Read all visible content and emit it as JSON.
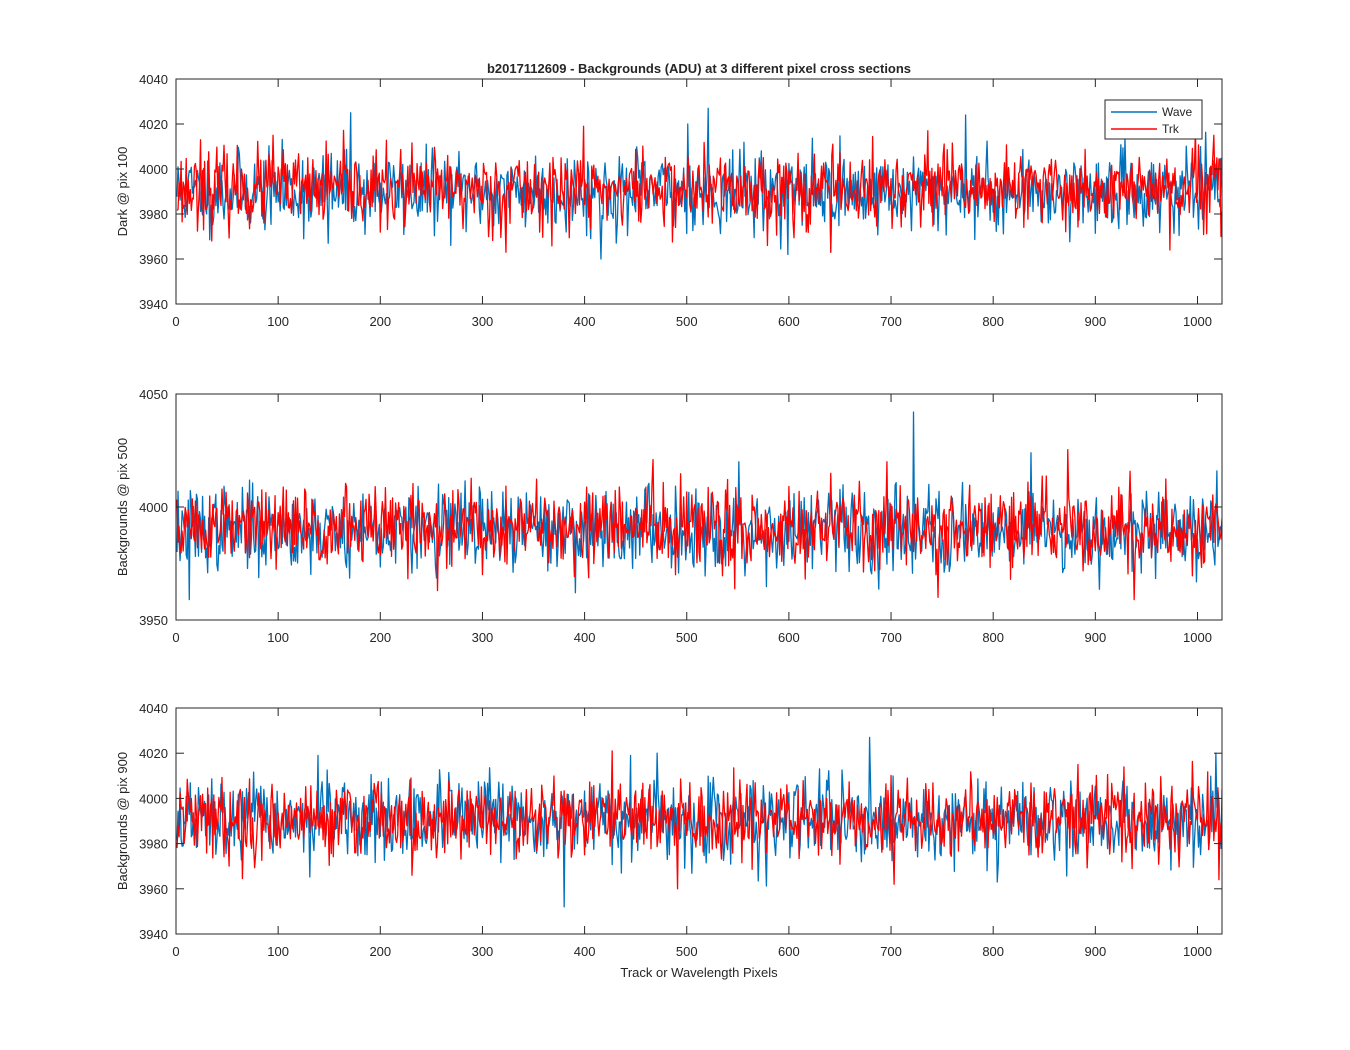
{
  "figure": {
    "title": "b2017112609 - Backgrounds (ADU) at 3 different pixel cross sections",
    "xlabel": "Track or Wavelength Pixels"
  },
  "legend": {
    "placement": "top-right of first subplot",
    "entries": [
      {
        "label": "Wave",
        "color": "#0072BD"
      },
      {
        "label": "Trk",
        "color": "#FF0000"
      }
    ]
  },
  "chart_data": [
    {
      "type": "line",
      "ylabel": "Dark @ pix 100",
      "xlim": [
        0,
        1024
      ],
      "ylim": [
        3940,
        4040
      ],
      "xticks": [
        0,
        100,
        200,
        300,
        400,
        500,
        600,
        700,
        800,
        900,
        1000
      ],
      "yticks": [
        3940,
        3960,
        3980,
        4000,
        4020,
        4040
      ],
      "series": [
        {
          "name": "Wave",
          "color": "#0072BD",
          "n": 1024,
          "mean": 3990,
          "sd": 8.5,
          "seed": 11,
          "spikes": [
            [
              170,
              4025
            ],
            [
              520,
              4027
            ],
            [
              500,
              4020
            ],
            [
              640,
              4022
            ],
            [
              772,
              4024
            ],
            [
              415,
              3960
            ],
            [
              598,
              3962
            ],
            [
              640,
              3963
            ],
            [
              148,
              3967
            ]
          ]
        },
        {
          "name": "Trk",
          "color": "#FF0000",
          "n": 1024,
          "mean": 3991,
          "sd": 8.5,
          "seed": 23,
          "spikes": [
            [
              322,
              3963
            ],
            [
              640,
              3963
            ],
            [
              1015,
              4015
            ],
            [
              1022,
              3970
            ],
            [
              972,
              3964
            ],
            [
              23,
              4013
            ],
            [
              735,
              4017
            ],
            [
              398,
              4019
            ],
            [
              94,
              4015
            ]
          ]
        }
      ]
    },
    {
      "type": "line",
      "ylabel": "Backgrounds @ pix 500",
      "xlim": [
        0,
        1024
      ],
      "ylim": [
        3950,
        4050
      ],
      "xticks": [
        0,
        100,
        200,
        300,
        400,
        500,
        600,
        700,
        800,
        900,
        1000
      ],
      "yticks": [
        3950,
        4000,
        4050
      ],
      "series": [
        {
          "name": "Wave",
          "color": "#0072BD",
          "n": 1024,
          "mean": 3990,
          "sd": 9,
          "seed": 37,
          "spikes": [
            [
              721,
              4042
            ],
            [
              12,
              3959
            ],
            [
              836,
              4024
            ],
            [
              550,
              4020
            ],
            [
              1018,
              4016
            ]
          ]
        },
        {
          "name": "Trk",
          "color": "#FF0000",
          "n": 1024,
          "mean": 3991,
          "sd": 9,
          "seed": 51,
          "spikes": [
            [
              466,
              4021
            ],
            [
              255,
              3963
            ],
            [
              745,
              3960
            ],
            [
              937,
              3959
            ],
            [
              695,
              4020
            ]
          ]
        }
      ]
    },
    {
      "type": "line",
      "ylabel": "Backgrounds @ pix 900",
      "xlim": [
        0,
        1024
      ],
      "ylim": [
        3940,
        4040
      ],
      "xticks": [
        0,
        100,
        200,
        300,
        400,
        500,
        600,
        700,
        800,
        900,
        1000
      ],
      "yticks": [
        3940,
        3960,
        3980,
        4000,
        4020,
        4040
      ],
      "series": [
        {
          "name": "Wave",
          "color": "#0072BD",
          "n": 1024,
          "mean": 3990,
          "sd": 8.5,
          "seed": 67,
          "spikes": [
            [
              379,
              3952
            ],
            [
              678,
              4027
            ],
            [
              138,
              4019
            ],
            [
              470,
              4020
            ],
            [
              1017,
              4020
            ],
            [
              803,
              3963
            ]
          ]
        },
        {
          "name": "Trk",
          "color": "#FF0000",
          "n": 1024,
          "mean": 3991,
          "sd": 8.5,
          "seed": 79,
          "spikes": [
            [
              426,
              4021
            ],
            [
              490,
              3960
            ],
            [
              230,
              3966
            ],
            [
              702,
              3962
            ],
            [
              882,
              4015
            ],
            [
              1020,
              3964
            ]
          ]
        }
      ]
    }
  ]
}
